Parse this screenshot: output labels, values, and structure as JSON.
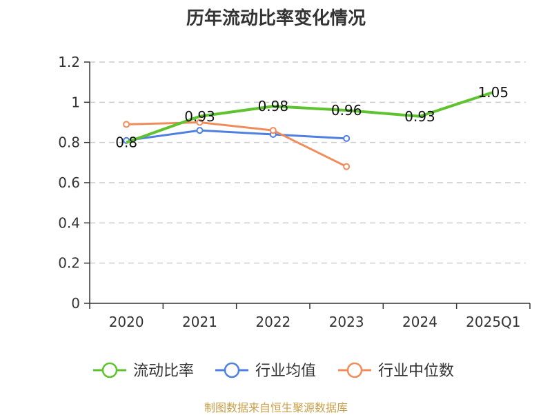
{
  "chart_data": {
    "type": "line",
    "title": "历年流动比率变化情况",
    "categories": [
      "2020",
      "2021",
      "2022",
      "2023",
      "2024",
      "2025Q1"
    ],
    "ylim": [
      0,
      1.2
    ],
    "yticks": [
      "0",
      "0.2",
      "0.4",
      "0.6",
      "0.8",
      "1",
      "1.2"
    ],
    "grid": true,
    "legend_position": "bottom",
    "series": [
      {
        "name": "流动比率",
        "color": "#5ec32e",
        "values": [
          0.8,
          0.93,
          0.98,
          0.96,
          0.93,
          1.05
        ],
        "labels": [
          "0.8",
          "0.93",
          "0.98",
          "0.96",
          "0.93",
          "1.05"
        ]
      },
      {
        "name": "行业均值",
        "color": "#4f7fe0",
        "values": [
          0.81,
          0.86,
          0.84,
          0.82,
          null,
          null
        ]
      },
      {
        "name": "行业中位数",
        "color": "#f08c5a",
        "values": [
          0.89,
          0.9,
          0.86,
          0.68,
          null,
          null
        ]
      }
    ]
  },
  "source_note": "制图数据来自恒生聚源数据库"
}
